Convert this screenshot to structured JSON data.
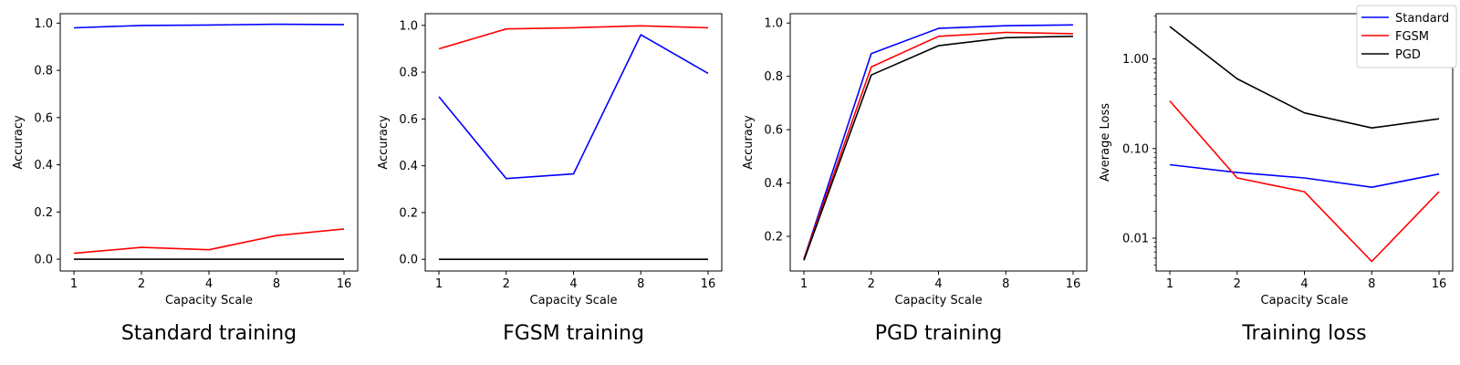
{
  "series_colors": {
    "Standard": "#0000ff",
    "FGSM": "#ff0000",
    "PGD": "#000000"
  },
  "chart_data": [
    {
      "type": "line",
      "caption": "Standard training",
      "xlabel": "Capacity Scale",
      "ylabel": "Accuracy",
      "x": [
        1,
        2,
        4,
        8,
        16
      ],
      "xticks": [
        "1",
        "2",
        "4",
        "8",
        "16"
      ],
      "yscale": "linear",
      "ylim": [
        -0.05,
        1.04
      ],
      "yticks": [
        0.0,
        0.2,
        0.4,
        0.6,
        0.8,
        1.0
      ],
      "ytick_labels": [
        "0.0",
        "0.2",
        "0.4",
        "0.6",
        "0.8",
        "1.0"
      ],
      "series": [
        {
          "name": "Standard",
          "values": [
            0.98,
            0.99,
            0.992,
            0.995,
            0.994
          ]
        },
        {
          "name": "FGSM",
          "values": [
            0.025,
            0.05,
            0.04,
            0.1,
            0.128
          ]
        },
        {
          "name": "PGD",
          "values": [
            0.0,
            0.0,
            0.0,
            0.0,
            0.0
          ]
        }
      ]
    },
    {
      "type": "line",
      "caption": "FGSM training",
      "xlabel": "Capacity Scale",
      "ylabel": "Accuracy",
      "x": [
        1,
        2,
        4,
        8,
        16
      ],
      "xticks": [
        "1",
        "2",
        "4",
        "8",
        "16"
      ],
      "yscale": "linear",
      "ylim": [
        -0.05,
        1.05
      ],
      "yticks": [
        0.0,
        0.2,
        0.4,
        0.6,
        0.8,
        1.0
      ],
      "ytick_labels": [
        "0.0",
        "0.2",
        "0.4",
        "0.6",
        "0.8",
        "1.0"
      ],
      "series": [
        {
          "name": "Standard",
          "values": [
            0.695,
            0.345,
            0.365,
            0.96,
            0.795
          ]
        },
        {
          "name": "FGSM",
          "values": [
            0.9,
            0.985,
            0.99,
            0.998,
            0.99
          ]
        },
        {
          "name": "PGD",
          "values": [
            0.0,
            0.0,
            0.0,
            0.0,
            0.0
          ]
        }
      ]
    },
    {
      "type": "line",
      "caption": "PGD training",
      "xlabel": "Capacity Scale",
      "ylabel": "Accuracy",
      "x": [
        1,
        2,
        4,
        8,
        16
      ],
      "xticks": [
        "1",
        "2",
        "4",
        "8",
        "16"
      ],
      "yscale": "linear",
      "ylim": [
        0.07,
        1.035
      ],
      "yticks": [
        0.2,
        0.4,
        0.6,
        0.8,
        1.0
      ],
      "ytick_labels": [
        "0.2",
        "0.4",
        "0.6",
        "0.8",
        "1.0"
      ],
      "series": [
        {
          "name": "Standard",
          "values": [
            0.115,
            0.885,
            0.98,
            0.99,
            0.993
          ]
        },
        {
          "name": "FGSM",
          "values": [
            0.115,
            0.835,
            0.95,
            0.965,
            0.96
          ]
        },
        {
          "name": "PGD",
          "values": [
            0.11,
            0.805,
            0.915,
            0.945,
            0.95
          ]
        }
      ]
    },
    {
      "type": "line",
      "caption": "Training loss",
      "xlabel": "Capacity Scale",
      "ylabel": "Average Loss",
      "x": [
        1,
        2,
        4,
        8,
        16
      ],
      "xticks": [
        "1",
        "2",
        "4",
        "8",
        "16"
      ],
      "yscale": "log",
      "ylim": [
        0.0043,
        3.2
      ],
      "yticks": [
        0.01,
        0.1,
        1.0
      ],
      "ytick_labels": [
        "0.01",
        "0.10",
        "1.00"
      ],
      "legend": {
        "placement": "upper-right",
        "entries": [
          "Standard",
          "FGSM",
          "PGD"
        ]
      },
      "series": [
        {
          "name": "Standard",
          "values": [
            0.066,
            0.054,
            0.047,
            0.037,
            0.052
          ]
        },
        {
          "name": "FGSM",
          "values": [
            0.34,
            0.047,
            0.033,
            0.0055,
            0.033
          ]
        },
        {
          "name": "PGD",
          "values": [
            2.3,
            0.6,
            0.25,
            0.17,
            0.215
          ]
        }
      ]
    }
  ]
}
